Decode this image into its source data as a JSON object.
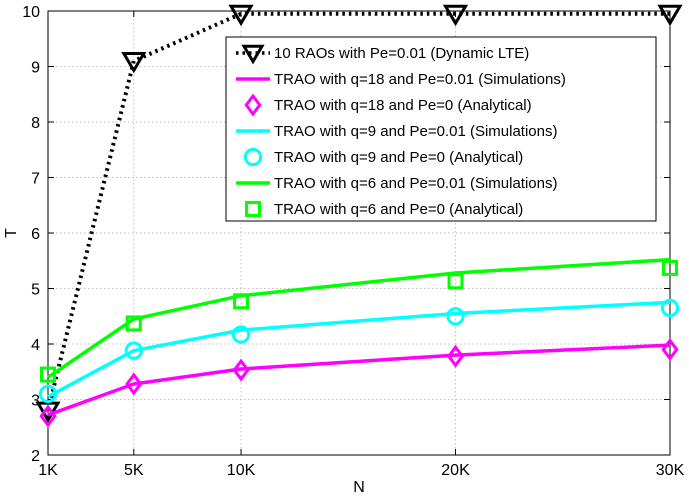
{
  "chart_data": {
    "type": "line",
    "title": "",
    "xlabel": "N",
    "ylabel": "T",
    "x": [
      1000,
      5000,
      10000,
      20000,
      30000
    ],
    "x_tick_labels": [
      "1K",
      "5K",
      "10K",
      "20K",
      "30K"
    ],
    "xlim": [
      1000,
      30000
    ],
    "ylim": [
      2,
      10
    ],
    "y_ticks": [
      2,
      3,
      4,
      5,
      6,
      7,
      8,
      9,
      10
    ],
    "grid": true,
    "legend_position": "top-right",
    "series": [
      {
        "name": "10 RAOs with Pe=0.01 (Dynamic LTE)",
        "color": "#000000",
        "line": "dotted",
        "marker": "triangle-down",
        "values": [
          2.8,
          9.1,
          9.95,
          9.95,
          9.95
        ]
      },
      {
        "name": "TRAO with q=18 and Pe=0.01 (Simulations)",
        "color": "#ff00ff",
        "line": "solid",
        "marker": "none",
        "values": [
          2.72,
          3.28,
          3.55,
          3.8,
          3.98
        ]
      },
      {
        "name": "TRAO with q=18 and Pe=0 (Analytical)",
        "color": "#ff00ff",
        "line": "none",
        "marker": "diamond",
        "values": [
          2.7,
          3.28,
          3.53,
          3.78,
          3.9
        ]
      },
      {
        "name": "TRAO with q=9 and Pe=0.01 (Simulations)",
        "color": "#00ffff",
        "line": "solid",
        "marker": "none",
        "values": [
          3.05,
          3.88,
          4.25,
          4.55,
          4.75
        ]
      },
      {
        "name": "TRAO with q=9 and Pe=0 (Analytical)",
        "color": "#00ffff",
        "line": "none",
        "marker": "circle",
        "values": [
          3.1,
          3.88,
          4.17,
          4.5,
          4.65
        ]
      },
      {
        "name": "TRAO with q=6 and Pe=0.01 (Simulations)",
        "color": "#00ff00",
        "line": "solid",
        "marker": "none",
        "values": [
          3.4,
          4.45,
          4.87,
          5.28,
          5.52
        ]
      },
      {
        "name": "TRAO with q=6 and Pe=0 (Analytical)",
        "color": "#00ff00",
        "line": "none",
        "marker": "square",
        "values": [
          3.45,
          4.37,
          4.77,
          5.13,
          5.37
        ]
      }
    ]
  }
}
